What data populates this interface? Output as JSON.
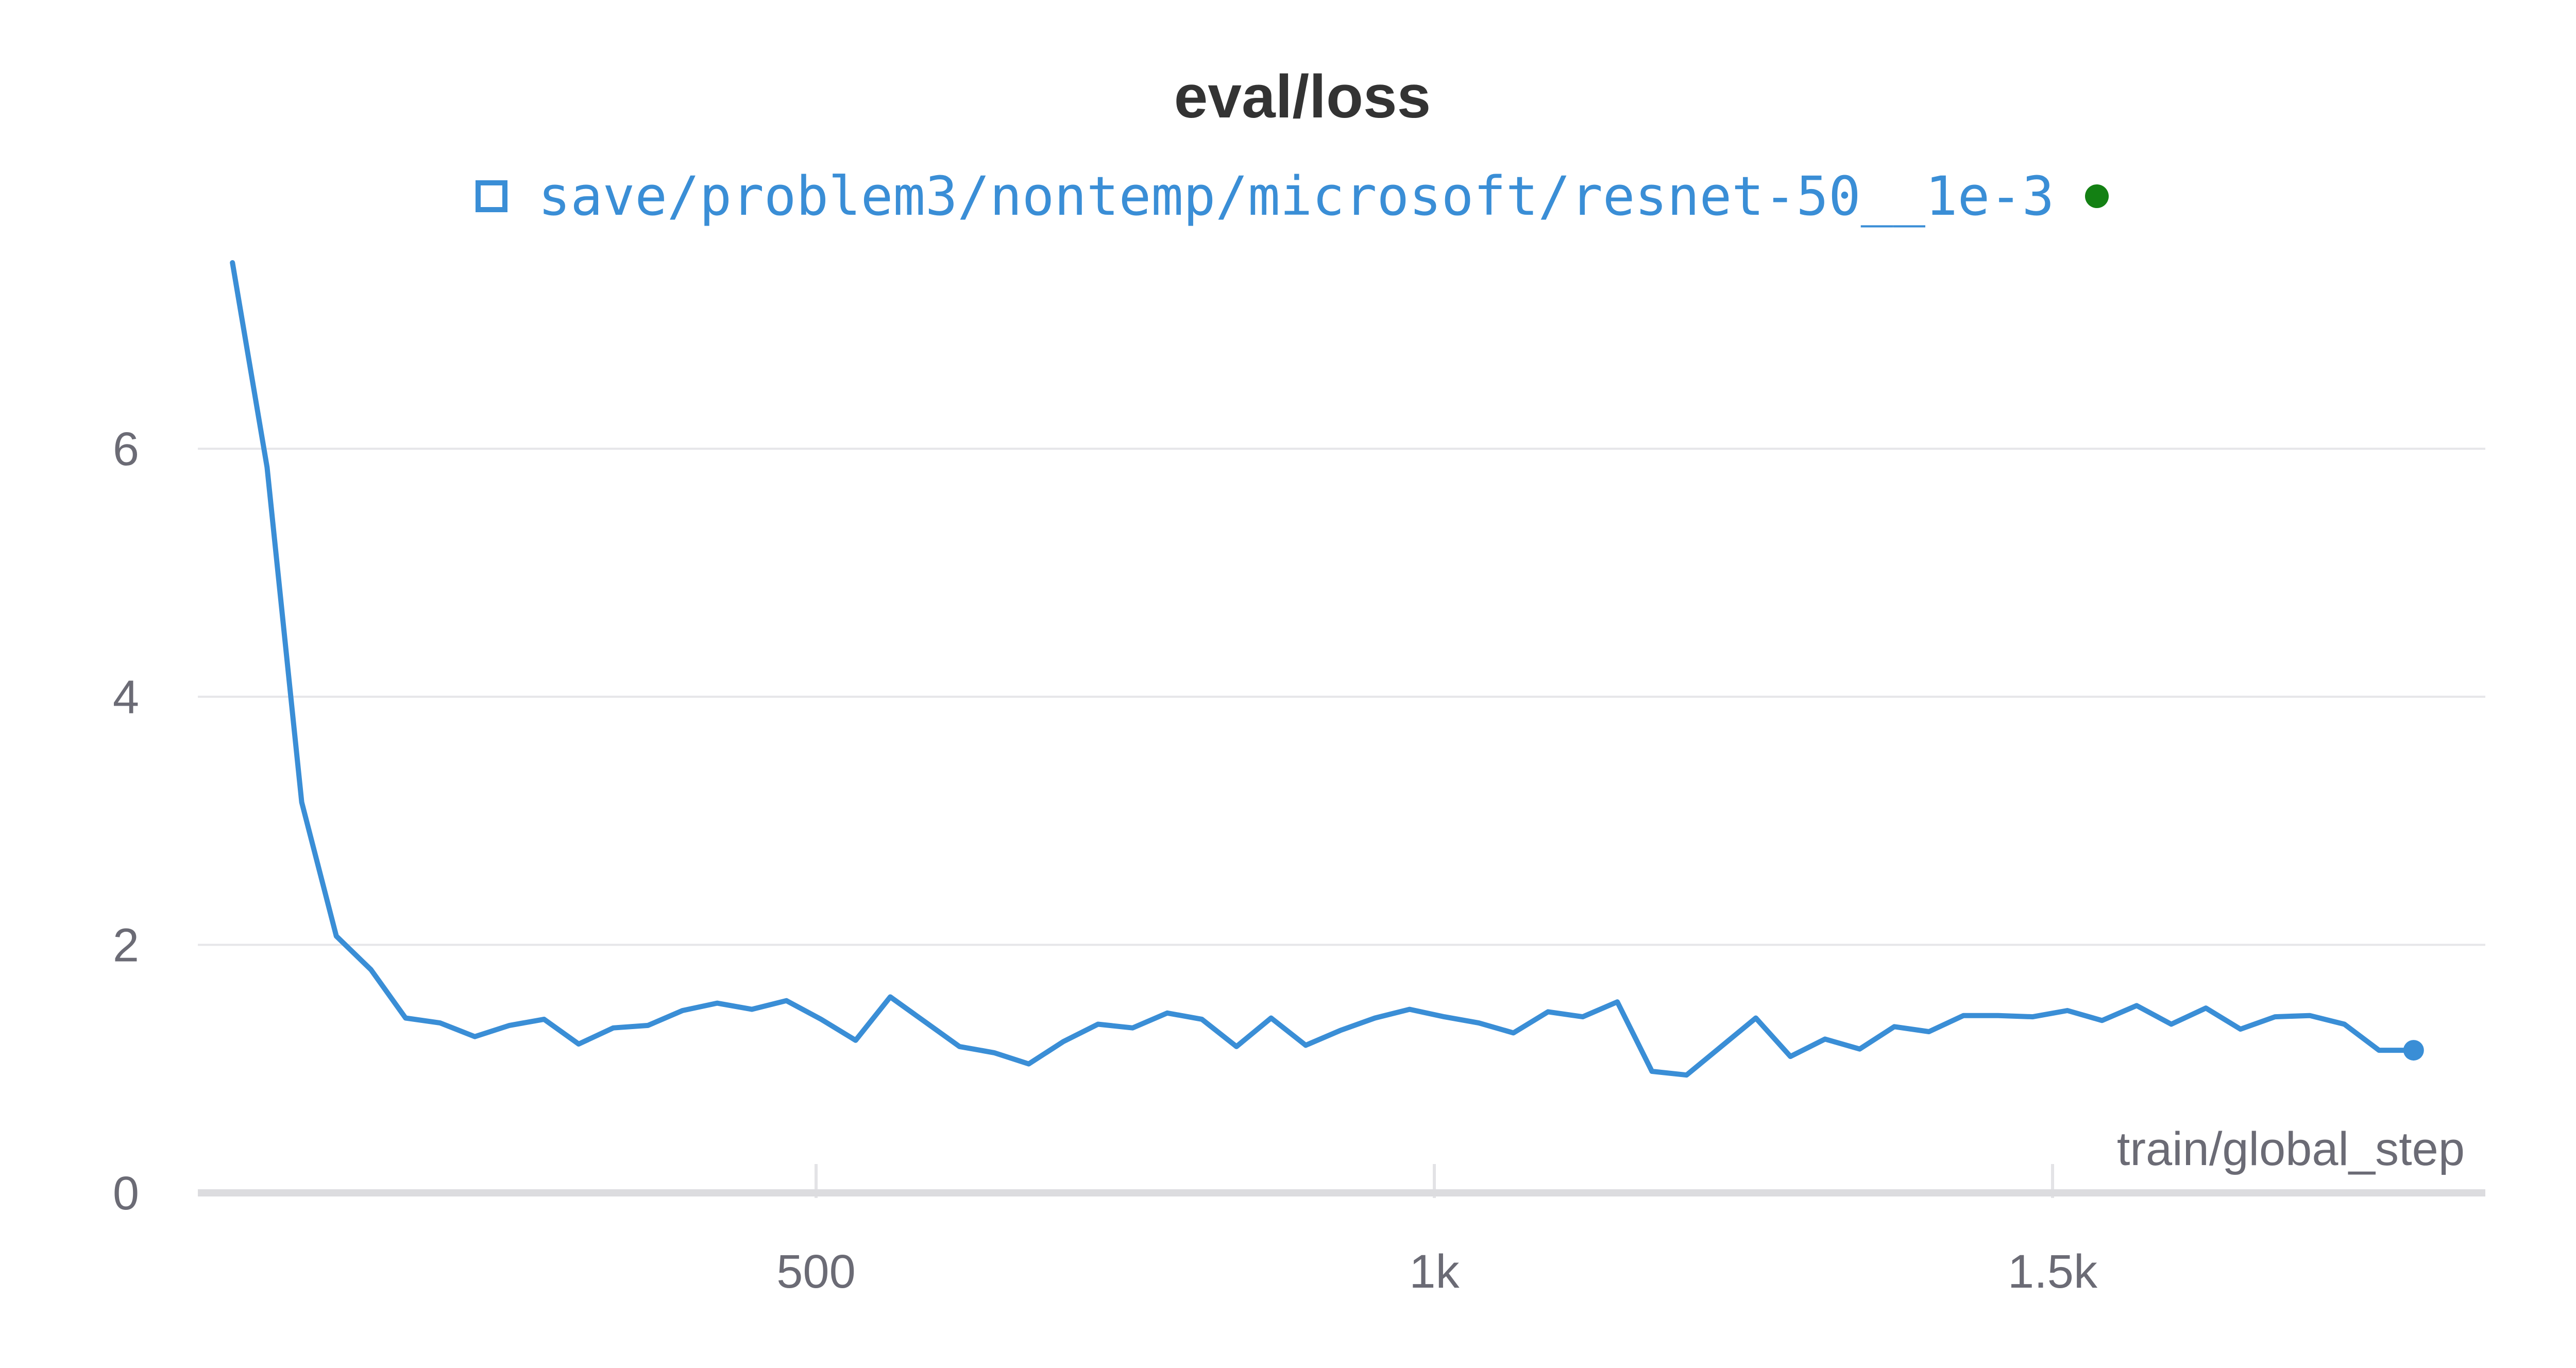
{
  "chart_data": {
    "type": "line",
    "title": "eval/loss",
    "xlabel": "train/global_step",
    "ylabel": "",
    "xlim": [
      0,
      1850
    ],
    "ylim": [
      0,
      7.5
    ],
    "x_ticks": [
      {
        "value": 500,
        "label": "500"
      },
      {
        "value": 1000,
        "label": "1k"
      },
      {
        "value": 1500,
        "label": "1.5k"
      }
    ],
    "y_ticks": [
      {
        "value": 0,
        "label": "0"
      },
      {
        "value": 2,
        "label": "2"
      },
      {
        "value": 4,
        "label": "4"
      },
      {
        "value": 6,
        "label": "6"
      }
    ],
    "grid": true,
    "legend_position": "top-center",
    "series": [
      {
        "name": "save/problem3/nontemp/microsoft/resnet-50__1e-3",
        "color": "#3a8ed6",
        "status_color": "#138013",
        "x": [
          28,
          56,
          84,
          112,
          140,
          168,
          196,
          224,
          252,
          280,
          308,
          336,
          364,
          392,
          420,
          448,
          476,
          504,
          532,
          560,
          588,
          616,
          644,
          672,
          700,
          728,
          756,
          784,
          812,
          840,
          868,
          896,
          924,
          952,
          980,
          1008,
          1036,
          1064,
          1092,
          1120,
          1148,
          1176,
          1204,
          1232,
          1260,
          1288,
          1316,
          1344,
          1372,
          1400,
          1428,
          1456,
          1484,
          1512,
          1540,
          1568,
          1596,
          1624,
          1652,
          1680,
          1708,
          1736,
          1764,
          1792
        ],
        "y": [
          7.5,
          5.85,
          3.15,
          2.07,
          1.8,
          1.41,
          1.37,
          1.26,
          1.35,
          1.4,
          1.2,
          1.33,
          1.35,
          1.47,
          1.53,
          1.48,
          1.55,
          1.4,
          1.23,
          1.58,
          1.38,
          1.18,
          1.13,
          1.04,
          1.22,
          1.36,
          1.33,
          1.45,
          1.4,
          1.18,
          1.41,
          1.19,
          1.31,
          1.41,
          1.48,
          1.42,
          1.37,
          1.29,
          1.46,
          1.42,
          1.54,
          0.98,
          0.95,
          1.18,
          1.41,
          1.1,
          1.24,
          1.16,
          1.34,
          1.3,
          1.43,
          1.43,
          1.42,
          1.47,
          1.39,
          1.51,
          1.36,
          1.49,
          1.32,
          1.42,
          1.43,
          1.36,
          1.15,
          1.15
        ]
      }
    ]
  }
}
